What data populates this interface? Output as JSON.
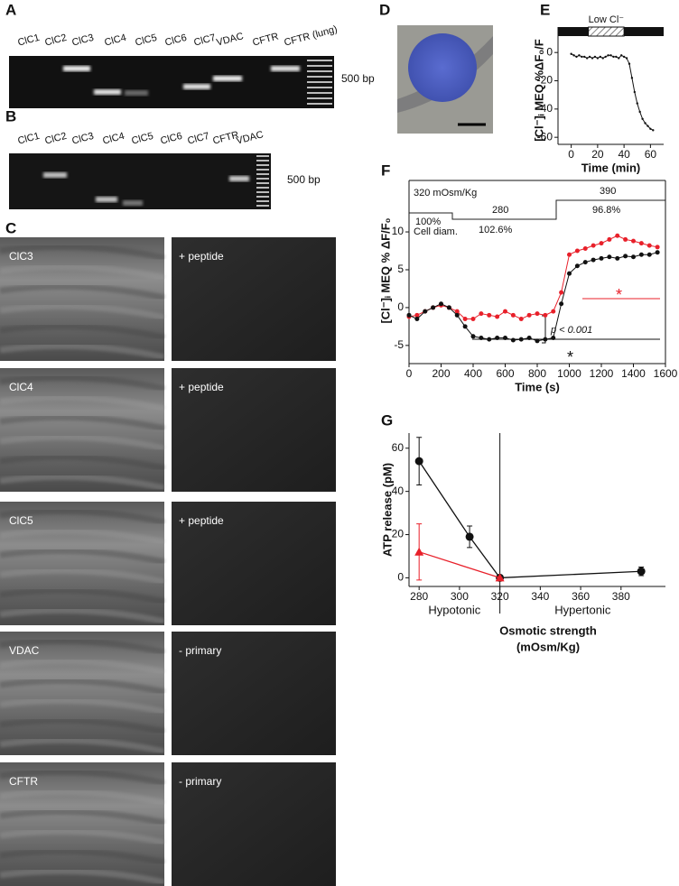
{
  "panels": {
    "A": {
      "letter": "A",
      "lanes": [
        "ClC1",
        "ClC2",
        "ClC3",
        "ClC4",
        "ClC5",
        "ClC6",
        "ClC7",
        "VDAC",
        "CFTR",
        "CFTR (lung)"
      ],
      "marker": "500 bp"
    },
    "B": {
      "letter": "B",
      "lanes": [
        "ClC1",
        "ClC2",
        "ClC3",
        "ClC4",
        "ClC5",
        "ClC6",
        "ClC7",
        "CFTR",
        "VDAC"
      ],
      "marker": "500 bp"
    },
    "C": {
      "letter": "C",
      "images": [
        {
          "label": "ClC3",
          "control": "+ peptide"
        },
        {
          "label": "ClC4",
          "control": "+ peptide"
        },
        {
          "label": "ClC5",
          "control": "+ peptide"
        },
        {
          "label": "VDAC",
          "control": "- primary"
        },
        {
          "label": "CFTR",
          "control": "- primary"
        }
      ]
    },
    "D": {
      "letter": "D"
    }
  },
  "chart_data": [
    {
      "type": "line",
      "panel": "E",
      "x_label": "Time (min)",
      "y_label": "[Cl⁻]ᵢ MEQ %ΔF₀/F",
      "low_cl": {
        "label": "Low Cl⁻",
        "start": 13,
        "end": 40
      },
      "xlim": [
        -10,
        70
      ],
      "ylim": [
        -65,
        18
      ],
      "xticks": [
        0,
        20,
        40,
        60
      ],
      "yticks": [
        0,
        -20,
        -40,
        -60
      ],
      "x": [
        0,
        2,
        4,
        6,
        8,
        10,
        12,
        14,
        16,
        18,
        20,
        22,
        24,
        26,
        28,
        30,
        32,
        34,
        36,
        38,
        40,
        42,
        44,
        46,
        48,
        50,
        52,
        54,
        56,
        58,
        60,
        62
      ],
      "series": [
        {
          "color": "#111111",
          "values": [
            -1,
            -2,
            -3,
            -2,
            -3,
            -3,
            -4,
            -3,
            -4,
            -3,
            -4,
            -3,
            -4,
            -3,
            -2,
            -2,
            -3,
            -3,
            -4,
            -2,
            -3,
            -4,
            -8,
            -18,
            -28,
            -36,
            -42,
            -47,
            -50,
            -52,
            -54,
            -55
          ]
        }
      ]
    },
    {
      "type": "line",
      "panel": "F",
      "x_label": "Time (s)",
      "y_label": "[Cl⁻]ᵢ MEQ % ΔF/F₀",
      "annotations": {
        "osm_start": "320 mOsm/Kg",
        "osm_hypo": "280",
        "osm_hyper": "390",
        "diam_start": "100%",
        "diam_label": "Cell diam.",
        "diam_hypo": "102.6%",
        "diam_hyper": "96.8%",
        "p_value": "p < 0.001",
        "star_black": "*",
        "star_red": "*"
      },
      "xlim": [
        0,
        1600
      ],
      "ylim": [
        -7.4,
        16.8
      ],
      "xticks": [
        0,
        200,
        400,
        600,
        800,
        1000,
        1200,
        1400,
        1600
      ],
      "yticks": [
        -5,
        0,
        5,
        10
      ],
      "x": [
        0,
        50,
        100,
        150,
        200,
        250,
        300,
        350,
        400,
        450,
        500,
        550,
        600,
        650,
        700,
        750,
        800,
        850,
        900,
        950,
        1000,
        1050,
        1100,
        1150,
        1200,
        1250,
        1300,
        1350,
        1400,
        1450,
        1500,
        1550
      ],
      "series": [
        {
          "color": "#e8202a",
          "values": [
            -1.2,
            -1,
            -0.5,
            0,
            0.3,
            0,
            -0.5,
            -1.5,
            -1.5,
            -0.8,
            -1,
            -1.2,
            -0.5,
            -1,
            -1.5,
            -1,
            -0.8,
            -1,
            -0.5,
            2,
            7,
            7.5,
            7.8,
            8.2,
            8.5,
            9,
            9.5,
            9,
            8.8,
            8.5,
            8.2,
            8
          ]
        },
        {
          "color": "#111111",
          "values": [
            -1,
            -1.5,
            -0.5,
            0,
            0.5,
            0,
            -1,
            -2.5,
            -3.8,
            -4,
            -4.2,
            -4,
            -4,
            -4.3,
            -4.2,
            -4,
            -4.4,
            -4.2,
            -4,
            0.5,
            4.5,
            5.5,
            6,
            6.3,
            6.5,
            6.7,
            6.5,
            6.8,
            6.7,
            7,
            7,
            7.3
          ]
        }
      ]
    },
    {
      "type": "line",
      "panel": "G",
      "x_label": [
        "Osmotic strength",
        "(mOsm/Kg)"
      ],
      "y_label": "ATP release (pM)",
      "region_labels": [
        "Hypotonic",
        "Hypertonic"
      ],
      "xlim": [
        275,
        402
      ],
      "ylim": [
        -4,
        67
      ],
      "xticks": [
        280,
        300,
        320,
        340,
        360,
        380
      ],
      "yticks": [
        0,
        20,
        40,
        60
      ],
      "series": [
        {
          "color": "#111111",
          "marker": "circle",
          "x": [
            280,
            305,
            320,
            390
          ],
          "values": [
            54,
            19,
            0,
            3
          ],
          "errors": [
            11,
            5,
            0,
            2
          ]
        },
        {
          "color": "#e8202a",
          "marker": "triangle",
          "x": [
            280,
            320
          ],
          "values": [
            12,
            0
          ],
          "errors": [
            13,
            0
          ]
        }
      ]
    }
  ]
}
